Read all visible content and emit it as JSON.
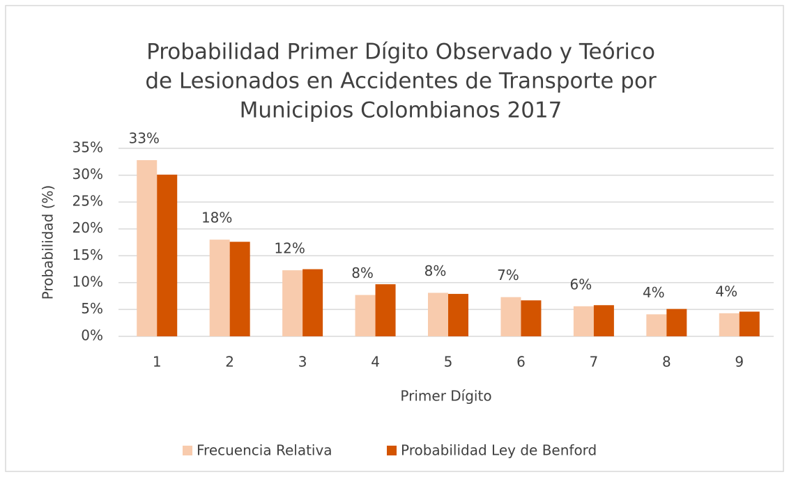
{
  "chart_data": {
    "type": "bar",
    "title": [
      "Probabilidad Primer Dígito Observado y Teórico",
      "de Lesionados en Accidentes de Transporte por",
      "Municipios Colombianos 2017"
    ],
    "x_label": "Primer Dígito",
    "y_label": "Probabilidad (%)",
    "categories": [
      "1",
      "2",
      "3",
      "4",
      "5",
      "6",
      "7",
      "8",
      "9"
    ],
    "series": [
      {
        "name": "Frecuencia Relativa",
        "color": "#f8cbad",
        "values": [
          32.8,
          18,
          12.3,
          7.7,
          8.1,
          7.3,
          5.6,
          4.1,
          4.3
        ],
        "value_labels": [
          "33%",
          "18%",
          "12%",
          "8%",
          "8%",
          "7%",
          "6%",
          "4%",
          "4%"
        ]
      },
      {
        "name": "Probabilidad Ley de Benford",
        "color": "#d35400",
        "values": [
          30.1,
          17.6,
          12.5,
          9.7,
          7.9,
          6.7,
          5.8,
          5.1,
          4.6
        ]
      }
    ],
    "ylim": [
      0,
      35
    ],
    "yticks": [
      {
        "value": 0,
        "label": "0%"
      },
      {
        "value": 5,
        "label": "5%"
      },
      {
        "value": 10,
        "label": "10%"
      },
      {
        "value": 15,
        "label": "15%"
      },
      {
        "value": 20,
        "label": "20%"
      },
      {
        "value": 25,
        "label": "25%"
      },
      {
        "value": 30,
        "label": "30%"
      },
      {
        "value": 35,
        "label": "35%"
      }
    ],
    "grid": true,
    "legend": "bottom"
  }
}
